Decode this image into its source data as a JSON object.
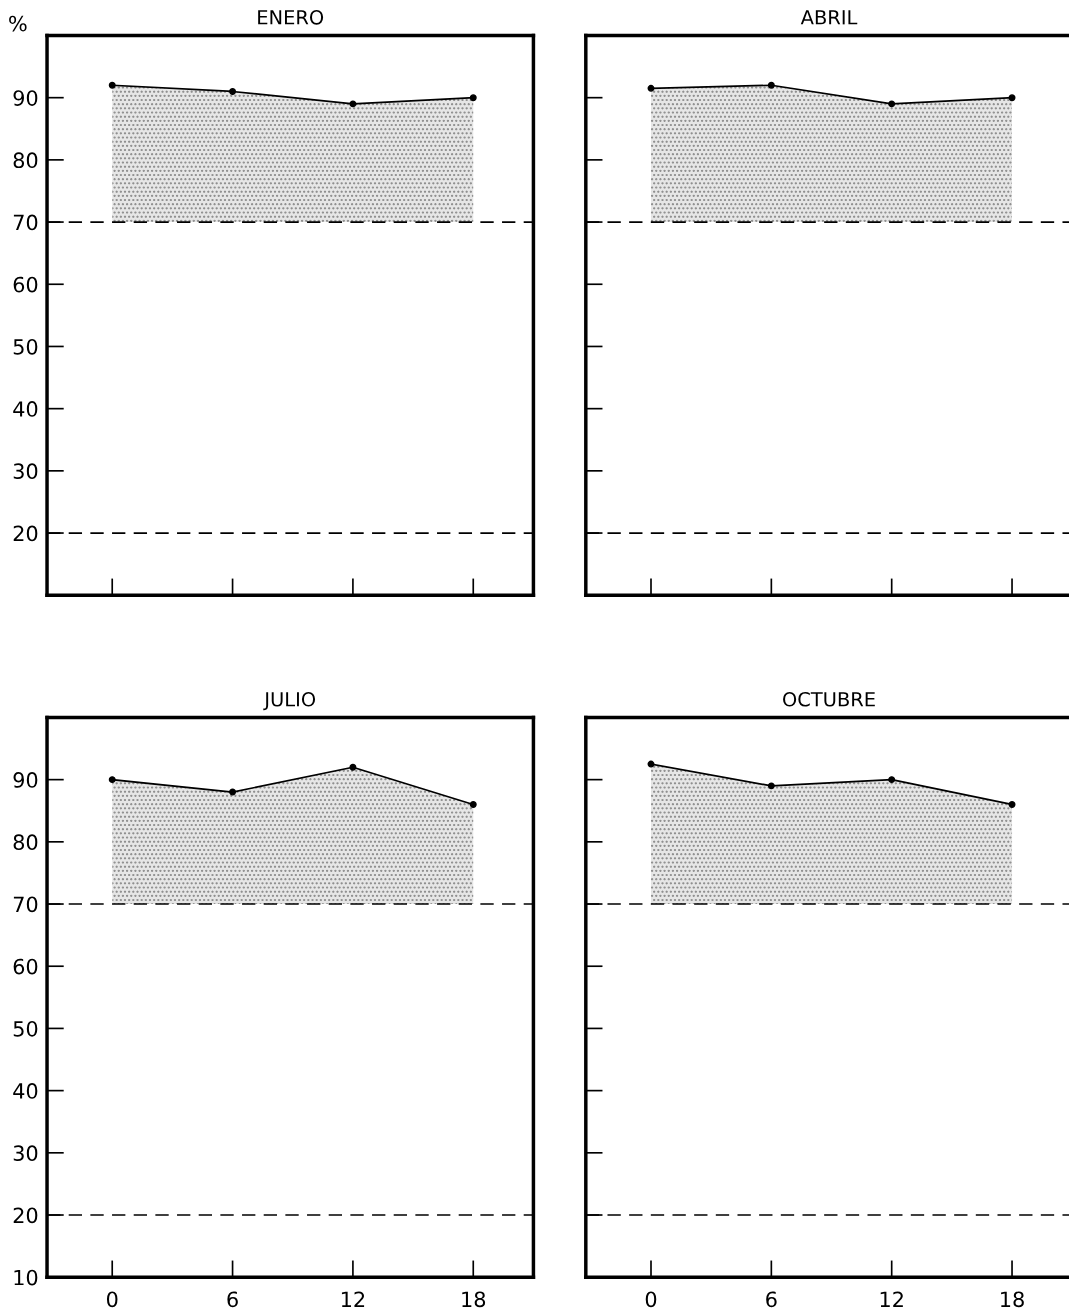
{
  "chart_data": [
    {
      "type": "line",
      "title": "ENERO",
      "ylabel": "%",
      "x": [
        0,
        6,
        12,
        18
      ],
      "series": [
        {
          "color": "#000000",
          "values": [
            92,
            91,
            89,
            90
          ],
          "lower": [
            70,
            70,
            70,
            70
          ],
          "upper": [
            92,
            91,
            89,
            90
          ]
        }
      ],
      "xlim": [
        -3.25,
        21
      ],
      "xticks": [
        0,
        6,
        12,
        18
      ],
      "ylim": [
        10,
        100
      ],
      "yticks": [
        20,
        30,
        40,
        50,
        60,
        70,
        80,
        90
      ],
      "ref_lines": [
        {
          "axis": "y",
          "value": 70,
          "line_style": "dashed",
          "color": "#000000"
        },
        {
          "axis": "y",
          "value": 20,
          "line_style": "dashed",
          "color": "#000000"
        }
      ],
      "marker": "circle",
      "line_style": "solid",
      "grid": false,
      "legend": false,
      "tick_labels": "y"
    },
    {
      "type": "line",
      "title": "ABRIL",
      "x": [
        0,
        6,
        12,
        18
      ],
      "series": [
        {
          "color": "#000000",
          "values": [
            91.5,
            92,
            89,
            90
          ],
          "lower": [
            70,
            70,
            70,
            70
          ],
          "upper": [
            91.5,
            92,
            89,
            90
          ]
        }
      ],
      "xlim": [
        -3.25,
        21
      ],
      "xticks": [
        0,
        6,
        12,
        18
      ],
      "ylim": [
        10,
        100
      ],
      "yticks": [
        20,
        30,
        40,
        50,
        60,
        70,
        80,
        90
      ],
      "ref_lines": [
        {
          "axis": "y",
          "value": 70,
          "line_style": "dashed",
          "color": "#000000"
        },
        {
          "axis": "y",
          "value": 20,
          "line_style": "dashed",
          "color": "#000000"
        }
      ],
      "marker": "circle",
      "line_style": "solid",
      "grid": false,
      "legend": false,
      "tick_labels": false
    },
    {
      "type": "line",
      "title": "JULIO",
      "x": [
        0,
        6,
        12,
        18
      ],
      "series": [
        {
          "color": "#000000",
          "values": [
            90,
            88,
            92,
            86
          ],
          "lower": [
            70,
            70,
            70,
            70
          ],
          "upper": [
            90,
            88,
            92,
            86
          ]
        }
      ],
      "xlim": [
        -3.25,
        21
      ],
      "xticks": [
        0,
        6,
        12,
        18
      ],
      "ylim": [
        10,
        100
      ],
      "yticks": [
        10,
        20,
        30,
        40,
        50,
        60,
        70,
        80,
        90
      ],
      "ref_lines": [
        {
          "axis": "y",
          "value": 70,
          "line_style": "dashed",
          "color": "#000000"
        },
        {
          "axis": "y",
          "value": 20,
          "line_style": "dashed",
          "color": "#000000"
        }
      ],
      "marker": "circle",
      "line_style": "solid",
      "grid": false,
      "legend": false
    },
    {
      "type": "line",
      "title": "OCTUBRE",
      "x": [
        0,
        6,
        12,
        18
      ],
      "series": [
        {
          "color": "#000000",
          "values": [
            92.5,
            89,
            90,
            86
          ],
          "lower": [
            70,
            70,
            70,
            70
          ],
          "upper": [
            92.5,
            89,
            90,
            86
          ]
        }
      ],
      "xlim": [
        -3.25,
        21
      ],
      "xticks": [
        0,
        6,
        12,
        18
      ],
      "ylim": [
        10,
        100
      ],
      "yticks": [
        10,
        20,
        30,
        40,
        50,
        60,
        70,
        80,
        90
      ],
      "ref_lines": [
        {
          "axis": "y",
          "value": 70,
          "line_style": "dashed",
          "color": "#000000"
        },
        {
          "axis": "y",
          "value": 20,
          "line_style": "dashed",
          "color": "#000000"
        }
      ],
      "marker": "circle",
      "line_style": "solid",
      "grid": false,
      "legend": false,
      "tick_labels": "x"
    }
  ]
}
